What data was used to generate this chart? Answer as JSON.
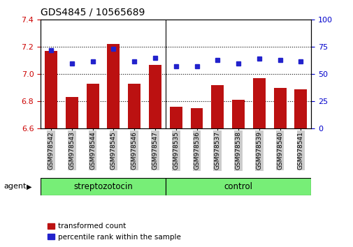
{
  "title": "GDS4845 / 10565689",
  "samples": [
    "GSM978542",
    "GSM978543",
    "GSM978544",
    "GSM978545",
    "GSM978546",
    "GSM978547",
    "GSM978535",
    "GSM978536",
    "GSM978537",
    "GSM978538",
    "GSM978539",
    "GSM978540",
    "GSM978541"
  ],
  "red_values": [
    7.17,
    6.83,
    6.93,
    7.22,
    6.93,
    7.07,
    6.76,
    6.75,
    6.92,
    6.81,
    6.97,
    6.9,
    6.89
  ],
  "blue_values": [
    72,
    60,
    62,
    73,
    62,
    65,
    57,
    57,
    63,
    60,
    64,
    63,
    62
  ],
  "ylim_left": [
    6.6,
    7.4
  ],
  "ylim_right": [
    0,
    100
  ],
  "yticks_left": [
    6.6,
    6.8,
    7.0,
    7.2,
    7.4
  ],
  "yticks_right": [
    0,
    25,
    50,
    75,
    100
  ],
  "bar_color": "#bb1111",
  "dot_color": "#2222cc",
  "bar_width": 0.6,
  "xlabel_fontsize": 6.5,
  "title_fontsize": 10,
  "tick_fontsize": 8,
  "agent_label": "agent",
  "group1_label": "streptozotocin",
  "group2_label": "control",
  "group1_count": 6,
  "group2_count": 7,
  "legend_red": "transformed count",
  "legend_blue": "percentile rank within the sample",
  "group_bg_color": "#77ee77",
  "group_border_color": "#000000",
  "plot_bg_color": "#ffffff",
  "tick_label_bg": "#cccccc",
  "dotted_grid_color": "#000000",
  "ytick_red_color": "#cc0000",
  "ytick_blue_color": "#0000cc"
}
